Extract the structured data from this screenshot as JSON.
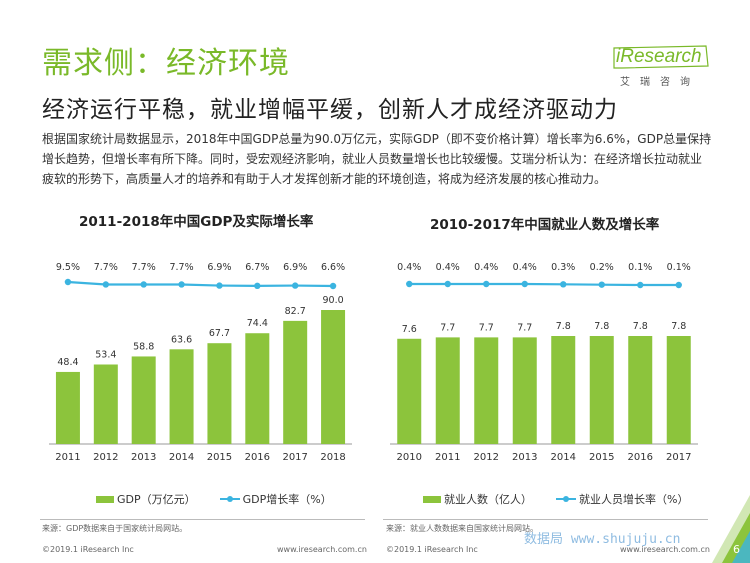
{
  "header": {
    "title": "需求侧：经济环境",
    "logo_text": "iResearch",
    "logo_sub": "艾瑞咨询",
    "subtitle": "经济运行平稳，就业增幅平缓，创新人才成经济驱动力",
    "intro": "根据国家统计局数据显示，2018年中国GDP总量为90.0万亿元，实际GDP（即不变价格计算）增长率为6.6%，GDP总量保持增长趋势，但增长率有所下降。同时，受宏观经济影响，就业人员数量增长也比较缓慢。艾瑞分析认为：在经济增长拉动就业疲软的形势下，高质量人才的培养和有助于人才发挥创新才能的环境创造，将成为经济发展的核心推动力。"
  },
  "colors": {
    "bar": "#8cc43c",
    "line": "#3bb4e0",
    "brand": "#7ab929"
  },
  "chart_data": [
    {
      "type": "bar",
      "title": "2011-2018年中国GDP及实际增长率",
      "categories": [
        "2011",
        "2012",
        "2013",
        "2014",
        "2015",
        "2016",
        "2017",
        "2018"
      ],
      "series": [
        {
          "name": "GDP（万亿元）",
          "type": "bar",
          "values": [
            48.4,
            53.4,
            58.8,
            63.6,
            67.7,
            74.4,
            82.7,
            90.0
          ],
          "labels": [
            "48.4",
            "53.4",
            "58.8",
            "63.6",
            "67.7",
            "74.4",
            "82.7",
            "90.0"
          ]
        },
        {
          "name": "GDP增长率（%）",
          "type": "line",
          "values": [
            9.5,
            7.7,
            7.7,
            7.7,
            6.9,
            6.7,
            6.9,
            6.6
          ],
          "labels": [
            "9.5%",
            "7.7%",
            "7.7%",
            "7.7%",
            "6.9%",
            "6.7%",
            "6.9%",
            "6.6%"
          ]
        }
      ],
      "legend": "bottom",
      "source": "来源：GDP数据来自于国家统计局网站。"
    },
    {
      "type": "bar",
      "title": "2010-2017年中国就业人数及增长率",
      "categories": [
        "2010",
        "2011",
        "2012",
        "2013",
        "2014",
        "2015",
        "2016",
        "2017"
      ],
      "series": [
        {
          "name": "就业人数（亿人）",
          "type": "bar",
          "values": [
            7.6,
            7.7,
            7.7,
            7.7,
            7.8,
            7.8,
            7.8,
            7.8
          ],
          "labels": [
            "7.6",
            "7.7",
            "7.7",
            "7.7",
            "7.8",
            "7.8",
            "7.8",
            "7.8"
          ]
        },
        {
          "name": "就业人员增长率（%）",
          "type": "line",
          "values": [
            0.4,
            0.4,
            0.4,
            0.4,
            0.3,
            0.2,
            0.1,
            0.1
          ],
          "labels": [
            "0.4%",
            "0.4%",
            "0.4%",
            "0.4%",
            "0.3%",
            "0.2%",
            "0.1%",
            "0.1%"
          ]
        }
      ],
      "legend": "bottom",
      "source": "来源：就业人数数据来自国家统计局网站。"
    }
  ],
  "footer": {
    "copyright_left": "©2019.1 iResearch Inc",
    "url_left": "www.iresearch.com.cn",
    "copyright_right": "©2019.1 iResearch Inc",
    "url_right": "www.iresearch.com.cn",
    "watermark": "数据局 www.shujuju.cn",
    "page": "6"
  }
}
